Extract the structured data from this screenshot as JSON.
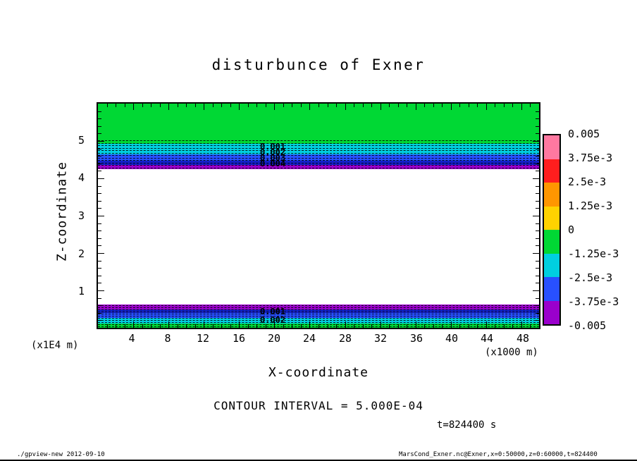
{
  "title": "disturbunce of Exner",
  "axes": {
    "x_label": "X-coordinate",
    "x_unit": "(x1000 m)",
    "x_ticks": [
      "4",
      "8",
      "12",
      "16",
      "20",
      "24",
      "28",
      "32",
      "36",
      "40",
      "44",
      "48"
    ],
    "y_label": "Z-coordinate",
    "y_unit": "(x1E4 m)",
    "y_ticks": [
      "5",
      "4",
      "3",
      "2",
      "1"
    ]
  },
  "colorbar": {
    "labels": [
      "0.005",
      "3.75e-3",
      "2.5e-3",
      "1.25e-3",
      "0",
      "-1.25e-3",
      "-2.5e-3",
      "-3.75e-3",
      "-0.005"
    ],
    "colors": [
      "#ff78a0",
      "#ff1e1e",
      "#ff9600",
      "#ffd200",
      "#00d834",
      "#00cfe0",
      "#2850ff",
      "#9a00cc"
    ]
  },
  "plot_colors": {
    "green": "#00d834",
    "cyan": "#00cfe0",
    "blue": "#2850ff",
    "navy": "#1420c8",
    "magenta": "#9a00cc",
    "white": "#ffffff"
  },
  "contour_labels": {
    "top": [
      "0.001",
      "0.002",
      "0.003",
      "0.004"
    ],
    "bottom": [
      "0.001",
      "0.002"
    ]
  },
  "notes": {
    "contour_interval": "CONTOUR INTERVAL = 5.000E-04",
    "time": "t=824400 s"
  },
  "footer": {
    "left": "./gpview-new  2012-09-10",
    "right": "MarsCond_Exner.nc@Exner,x=0:50000,z=0:60000,t=824400"
  },
  "chart_data": {
    "type": "heatmap",
    "title": "disturbunce of Exner",
    "xlabel": "X-coordinate (x1000 m)",
    "ylabel": "Z-coordinate (x1E4 m)",
    "xlim": [
      0,
      50
    ],
    "ylim": [
      0,
      6
    ],
    "x_ticks": [
      4,
      8,
      12,
      16,
      20,
      24,
      28,
      32,
      36,
      40,
      44,
      48
    ],
    "y_ticks": [
      1,
      2,
      3,
      4,
      5
    ],
    "contour_interval": 0.0005,
    "tone_levels": [
      -0.005,
      -0.00375,
      -0.0025,
      -0.00125,
      0,
      0.00125,
      0.0025,
      0.00375,
      0.005
    ],
    "legend_position": "right",
    "grid": false,
    "bands": [
      {
        "z_from": 4.93,
        "z_to": 6.0,
        "value_range": [
          -0.00125,
          0
        ],
        "color": "green"
      },
      {
        "z_from": 4.64,
        "z_to": 4.93,
        "value_range": [
          -0.0025,
          -0.00125
        ],
        "color": "cyan"
      },
      {
        "z_from": 4.47,
        "z_to": 4.64,
        "value_range": [
          -0.00375,
          -0.0025
        ],
        "color": "blue"
      },
      {
        "z_from": 4.36,
        "z_to": 4.47,
        "value_range": [
          -0.005,
          -0.00375
        ],
        "color": "navy"
      },
      {
        "z_from": 4.25,
        "z_to": 4.36,
        "value_range": [
          -0.006,
          -0.005
        ],
        "color": "magenta"
      },
      {
        "z_from": 0.62,
        "z_to": 4.25,
        "value_range": [
          0,
          0.00125
        ],
        "color": "white"
      },
      {
        "z_from": 0.49,
        "z_to": 0.62,
        "value_range": [
          -0.006,
          -0.005
        ],
        "color": "magenta"
      },
      {
        "z_from": 0.4,
        "z_to": 0.49,
        "value_range": [
          -0.005,
          -0.00375
        ],
        "color": "navy"
      },
      {
        "z_from": 0.26,
        "z_to": 0.4,
        "value_range": [
          -0.00375,
          -0.0025
        ],
        "color": "blue"
      },
      {
        "z_from": 0.11,
        "z_to": 0.26,
        "value_range": [
          -0.0025,
          -0.00125
        ],
        "color": "cyan"
      },
      {
        "z_from": 0.0,
        "z_to": 0.11,
        "value_range": [
          -0.00125,
          0
        ],
        "color": "green"
      }
    ],
    "contour_label_values_top": [
      0.001,
      0.002,
      0.003,
      0.004
    ],
    "contour_label_values_bottom": [
      0.001,
      0.002
    ],
    "annotations": [
      "CONTOUR INTERVAL = 5.000E-04",
      "t=824400 s"
    ]
  }
}
